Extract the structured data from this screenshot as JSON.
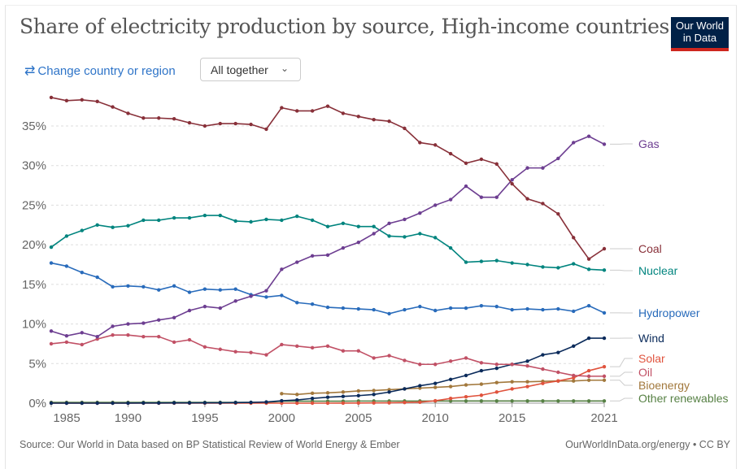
{
  "header": {
    "title": "Share of electricity production by source, High-income countries",
    "logo_text": "Our World in Data",
    "change_region_label": "Change country or region",
    "change_region_icon": "swap-arrows-icon",
    "view_select": "All together"
  },
  "footer": {
    "source": "Source: Our World in Data based on BP Statistical Review of World Energy & Ember",
    "license": "OurWorldInData.org/energy • CC BY"
  },
  "chart_data": {
    "type": "line",
    "title": "Share of electricity production by source, High-income countries",
    "xlabel": "",
    "ylabel": "",
    "x": [
      1985,
      1986,
      1987,
      1988,
      1989,
      1990,
      1991,
      1992,
      1993,
      1994,
      1995,
      1996,
      1997,
      1998,
      1999,
      2000,
      2001,
      2002,
      2003,
      2004,
      2005,
      2006,
      2007,
      2008,
      2009,
      2010,
      2011,
      2012,
      2013,
      2014,
      2015,
      2016,
      2017,
      2018,
      2019,
      2020,
      2021
    ],
    "xticks": [
      "1985",
      "1990",
      "1995",
      "2000",
      "2005",
      "2010",
      "2015",
      "2021"
    ],
    "yticks": [
      "0%",
      "5%",
      "10%",
      "15%",
      "20%",
      "25%",
      "30%",
      "35%"
    ],
    "ylim": [
      0,
      38.6
    ],
    "grid": "horizontal dashed",
    "legend": "right, line-end labels",
    "series": [
      {
        "name": "Gas",
        "color": "#6d3e91",
        "values": [
          9.1,
          8.5,
          8.9,
          8.4,
          9.7,
          10.0,
          10.1,
          10.5,
          10.8,
          11.7,
          12.2,
          12.0,
          12.9,
          13.5,
          14.2,
          16.9,
          17.8,
          18.6,
          18.7,
          19.6,
          20.3,
          21.4,
          22.7,
          23.2,
          24.0,
          25.0,
          25.7,
          27.4,
          26.0,
          26.0,
          28.2,
          29.7,
          29.7,
          30.9,
          32.9,
          33.7,
          32.7
        ]
      },
      {
        "name": "Coal",
        "color": "#883039",
        "values": [
          38.6,
          38.2,
          38.3,
          38.1,
          37.4,
          36.6,
          36.0,
          36.0,
          35.9,
          35.4,
          35.0,
          35.3,
          35.3,
          35.2,
          34.6,
          37.3,
          36.9,
          36.9,
          37.5,
          36.6,
          36.2,
          35.8,
          35.6,
          34.7,
          32.9,
          32.6,
          31.5,
          30.3,
          30.8,
          30.2,
          27.7,
          25.8,
          25.2,
          23.9,
          20.9,
          18.2,
          19.5
        ]
      },
      {
        "name": "Nuclear",
        "color": "#00847e",
        "values": [
          19.7,
          21.1,
          21.8,
          22.5,
          22.2,
          22.4,
          23.1,
          23.1,
          23.4,
          23.4,
          23.7,
          23.7,
          23.0,
          22.9,
          23.2,
          23.1,
          23.6,
          23.1,
          22.3,
          22.7,
          22.3,
          22.3,
          21.1,
          21.0,
          21.4,
          20.9,
          19.6,
          17.8,
          17.9,
          18.0,
          17.7,
          17.5,
          17.2,
          17.1,
          17.6,
          16.9,
          16.8
        ]
      },
      {
        "name": "Hydropower",
        "color": "#286bbb",
        "values": [
          17.7,
          17.3,
          16.5,
          15.9,
          14.7,
          14.8,
          14.7,
          14.3,
          14.8,
          14.0,
          14.4,
          14.3,
          14.4,
          13.7,
          13.4,
          13.6,
          12.7,
          12.5,
          12.1,
          12.0,
          11.9,
          11.8,
          11.3,
          11.8,
          12.2,
          11.7,
          12.0,
          12.0,
          12.3,
          12.2,
          11.8,
          11.9,
          11.8,
          11.9,
          11.6,
          12.3,
          11.4
        ]
      },
      {
        "name": "Wind",
        "color": "#0b2b5b",
        "values": [
          0.0,
          0.0,
          0.0,
          0.0,
          0.0,
          0.01,
          0.02,
          0.02,
          0.03,
          0.03,
          0.04,
          0.05,
          0.07,
          0.1,
          0.15,
          0.3,
          0.4,
          0.6,
          0.75,
          0.85,
          0.95,
          1.1,
          1.4,
          1.8,
          2.2,
          2.5,
          3.0,
          3.5,
          4.1,
          4.4,
          4.9,
          5.3,
          6.1,
          6.4,
          7.2,
          8.2,
          8.2
        ]
      },
      {
        "name": "Solar",
        "color": "#e0533d",
        "values": [
          0.0,
          0.0,
          0.0,
          0.0,
          0.0,
          0.0,
          0.0,
          0.0,
          0.0,
          0.0,
          0.0,
          0.0,
          0.0,
          0.0,
          0.0,
          0.0,
          0.0,
          0.0,
          0.0,
          0.01,
          0.02,
          0.03,
          0.05,
          0.08,
          0.12,
          0.3,
          0.6,
          0.8,
          1.0,
          1.4,
          1.8,
          2.1,
          2.5,
          2.8,
          3.2,
          4.1,
          4.6
        ]
      },
      {
        "name": "Oil",
        "color": "#c15065",
        "values": [
          7.5,
          7.7,
          7.4,
          8.1,
          8.6,
          8.6,
          8.4,
          8.4,
          7.7,
          8.0,
          7.1,
          6.8,
          6.5,
          6.4,
          6.1,
          7.4,
          7.2,
          7.0,
          7.2,
          6.6,
          6.6,
          5.7,
          6.0,
          5.4,
          4.9,
          4.9,
          5.3,
          5.7,
          5.1,
          4.9,
          4.9,
          4.7,
          4.3,
          3.9,
          3.5,
          3.4,
          3.4
        ]
      },
      {
        "name": "Bioenergy",
        "color": "#a2783c",
        "values": [
          null,
          null,
          null,
          null,
          null,
          null,
          null,
          null,
          null,
          null,
          null,
          null,
          null,
          null,
          null,
          1.2,
          1.1,
          1.25,
          1.3,
          1.4,
          1.55,
          1.6,
          1.7,
          1.8,
          1.9,
          2.0,
          2.1,
          2.3,
          2.4,
          2.6,
          2.7,
          2.7,
          2.75,
          2.8,
          2.8,
          2.9,
          2.9
        ]
      },
      {
        "name": "Other renewables",
        "color": "#578145",
        "values": [
          0.1,
          0.1,
          0.1,
          0.1,
          0.1,
          0.1,
          0.1,
          0.1,
          0.1,
          0.1,
          0.1,
          0.1,
          0.1,
          0.1,
          0.1,
          0.25,
          0.25,
          0.25,
          0.25,
          0.25,
          0.27,
          0.27,
          0.27,
          0.27,
          0.27,
          0.27,
          0.28,
          0.28,
          0.28,
          0.28,
          0.28,
          0.28,
          0.28,
          0.28,
          0.28,
          0.28,
          0.28
        ]
      }
    ]
  }
}
